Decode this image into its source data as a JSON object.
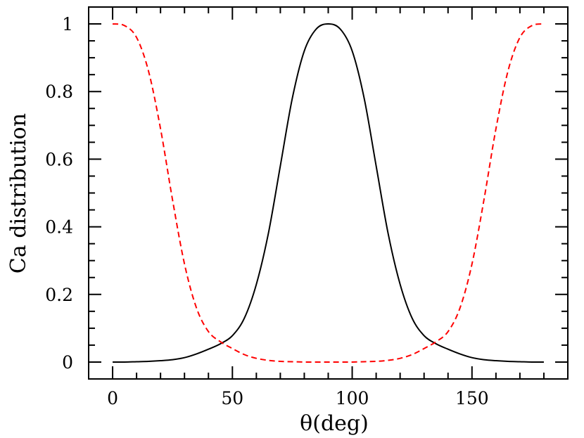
{
  "chart_data": {
    "type": "line",
    "title": "",
    "xlabel": "θ(deg)",
    "ylabel": "Ca distribution",
    "xlim": [
      -10,
      190
    ],
    "ylim": [
      -0.05,
      1.05
    ],
    "grid": false,
    "legend": "none",
    "x_ticks": [
      {
        "value": 0,
        "label": "0"
      },
      {
        "value": 50,
        "label": "50"
      },
      {
        "value": 100,
        "label": "100"
      },
      {
        "value": 150,
        "label": "150"
      }
    ],
    "y_ticks": [
      {
        "value": 0,
        "label": "0"
      },
      {
        "value": 0.2,
        "label": "0.2"
      },
      {
        "value": 0.4,
        "label": "0.4"
      },
      {
        "value": 0.6,
        "label": "0.6"
      },
      {
        "value": 0.8,
        "label": "0.8"
      },
      {
        "value": 1,
        "label": "1"
      }
    ],
    "x": [
      0,
      5,
      10,
      15,
      20,
      25,
      30,
      35,
      40,
      45,
      50,
      55,
      60,
      65,
      70,
      75,
      80,
      85,
      90,
      95,
      100,
      105,
      110,
      115,
      120,
      125,
      130,
      135,
      140,
      145,
      150,
      155,
      160,
      165,
      170,
      175,
      180
    ],
    "series": [
      {
        "color": "#000000",
        "style": "solid",
        "values": [
          0.0,
          0.0,
          0.001,
          0.002,
          0.004,
          0.007,
          0.013,
          0.024,
          0.038,
          0.054,
          0.078,
          0.13,
          0.23,
          0.38,
          0.58,
          0.78,
          0.92,
          0.985,
          1.0,
          0.985,
          0.92,
          0.78,
          0.58,
          0.38,
          0.23,
          0.13,
          0.078,
          0.054,
          0.038,
          0.024,
          0.013,
          0.007,
          0.004,
          0.002,
          0.001,
          0.0,
          0.0
        ]
      },
      {
        "color": "#ff0000",
        "style": "dashed",
        "values": [
          1.0,
          0.995,
          0.96,
          0.86,
          0.69,
          0.48,
          0.29,
          0.16,
          0.09,
          0.06,
          0.04,
          0.022,
          0.011,
          0.005,
          0.002,
          0.001,
          0.0,
          0.0,
          0.0,
          0.0,
          0.0,
          0.001,
          0.002,
          0.005,
          0.011,
          0.022,
          0.04,
          0.06,
          0.09,
          0.16,
          0.29,
          0.48,
          0.69,
          0.86,
          0.96,
          0.995,
          1.0
        ]
      }
    ]
  }
}
